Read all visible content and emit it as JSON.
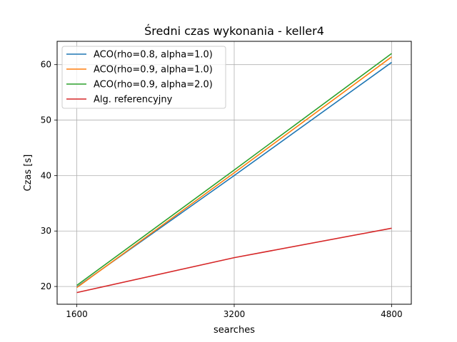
{
  "chart_data": {
    "type": "line",
    "title": "Średni czas wykonania - keller4",
    "xlabel": "searches",
    "ylabel": "Czas [s]",
    "x": [
      1600,
      3200,
      4800
    ],
    "xticks": [
      1600,
      3200,
      4800
    ],
    "yticks": [
      20,
      30,
      40,
      50,
      60
    ],
    "xlim": [
      1400,
      5000
    ],
    "ylim": [
      16.8,
      64.2
    ],
    "grid": true,
    "legend_position": "top-left",
    "series": [
      {
        "name": "ACO(rho=0.8, alpha=1.0)",
        "color": "#1f77b4",
        "values": [
          19.9,
          40.0,
          60.4
        ]
      },
      {
        "name": "ACO(rho=0.9, alpha=1.0)",
        "color": "#ff7f0e",
        "values": [
          19.8,
          40.5,
          61.4
        ]
      },
      {
        "name": "ACO(rho=0.9, alpha=2.0)",
        "color": "#2ca02c",
        "values": [
          20.2,
          41.0,
          62.0
        ]
      },
      {
        "name": "Alg. referencyjny",
        "color": "#d62728",
        "values": [
          18.9,
          25.2,
          30.5
        ]
      }
    ]
  }
}
